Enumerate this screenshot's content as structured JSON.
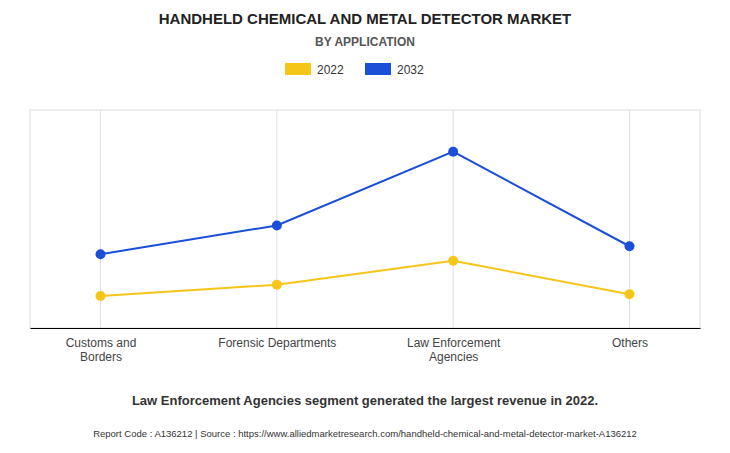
{
  "chart_data": {
    "type": "line",
    "title": "HANDHELD CHEMICAL AND METAL DETECTOR MARKET",
    "subtitle": "BY APPLICATION",
    "categories": [
      "Customs and\nBorders",
      "Forensic Departments",
      "Law Enforcement\nAgencies",
      "Others"
    ],
    "series": [
      {
        "name": "2022",
        "color": "#F5C518",
        "marker": "circle",
        "values": [
          1.0,
          1.35,
          2.1,
          1.05
        ]
      },
      {
        "name": "2032",
        "color": "#1B4FD8",
        "marker": "circle",
        "values": [
          2.3,
          3.2,
          5.5,
          2.55
        ]
      }
    ],
    "ylim": [
      0,
      6.8
    ],
    "grid": true,
    "legend": "top",
    "tick_labels": "x",
    "annotations": [
      "Law Enforcement Agencies segment generated the largest revenue in 2022.",
      "Report Code : A136212  |  Source : https://www.alliedmarketresearch.com/handheld-chemical-and-metal-detector-market-A136212"
    ]
  }
}
